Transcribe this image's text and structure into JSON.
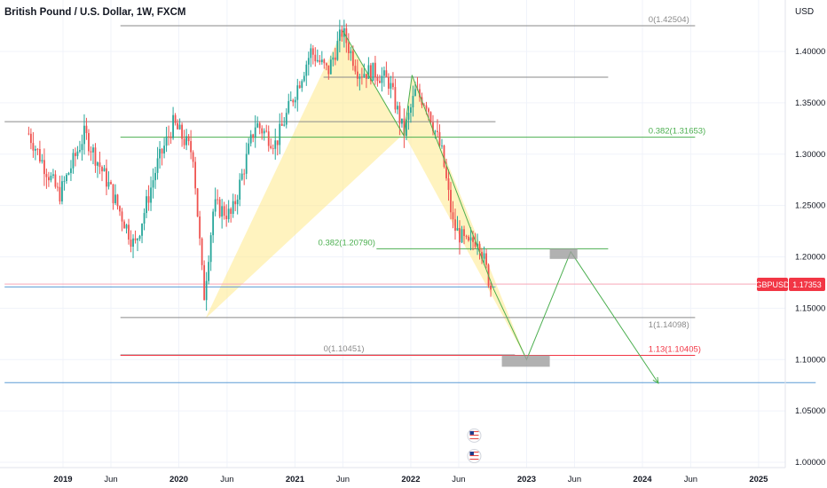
{
  "header": {
    "title": "British Pound / U.S. Dollar, 1W, FXCM",
    "currency": "USD"
  },
  "symbol_badge": {
    "label": "GBPUSD",
    "price": "1.17353"
  },
  "chart_data": {
    "type": "candlestick",
    "title": "British Pound / U.S. Dollar, 1W, FXCM",
    "y_unit": "USD",
    "ylim": [
      0.995,
      1.451
    ],
    "y_ticks": [
      {
        "value": 1.4,
        "label": "1.40000"
      },
      {
        "value": 1.35,
        "label": "1.35000"
      },
      {
        "value": 1.3,
        "label": "1.30000"
      },
      {
        "value": 1.25,
        "label": "1.25000"
      },
      {
        "value": 1.2,
        "label": "1.20000"
      },
      {
        "value": 1.15,
        "label": "1.15000"
      },
      {
        "value": 1.1,
        "label": "1.10000"
      },
      {
        "value": 1.05,
        "label": "1.05000"
      },
      {
        "value": 1.0,
        "label": "1.00000"
      }
    ],
    "x_ticks": [
      {
        "date": "2019-01-01",
        "label": "2019",
        "bold": true
      },
      {
        "date": "2019-06-01",
        "label": "Jun",
        "bold": false
      },
      {
        "date": "2020-01-01",
        "label": "2020",
        "bold": true
      },
      {
        "date": "2020-06-01",
        "label": "Jun",
        "bold": false
      },
      {
        "date": "2021-01-01",
        "label": "2021",
        "bold": true
      },
      {
        "date": "2021-06-01",
        "label": "Jun",
        "bold": false
      },
      {
        "date": "2022-01-01",
        "label": "2022",
        "bold": true
      },
      {
        "date": "2022-06-01",
        "label": "Jun",
        "bold": false
      },
      {
        "date": "2023-01-01",
        "label": "2023",
        "bold": true
      },
      {
        "date": "2023-06-01",
        "label": "Jun",
        "bold": false
      },
      {
        "date": "2024-01-01",
        "label": "2024",
        "bold": true
      },
      {
        "date": "2024-06-01",
        "label": "Jun",
        "bold": false
      },
      {
        "date": "2025-01-01",
        "label": "2025",
        "bold": true
      }
    ],
    "price_path": [
      [
        "2018-09-15",
        1.32
      ],
      [
        "2018-11-01",
        1.29
      ],
      [
        "2018-12-20",
        1.26
      ],
      [
        "2019-03-10",
        1.32
      ],
      [
        "2019-05-25",
        1.27
      ],
      [
        "2019-08-15",
        1.21
      ],
      [
        "2019-10-25",
        1.29
      ],
      [
        "2019-12-15",
        1.33
      ],
      [
        "2020-02-15",
        1.3
      ],
      [
        "2020-03-20",
        1.16
      ],
      [
        "2020-04-20",
        1.25
      ],
      [
        "2020-06-15",
        1.24
      ],
      [
        "2020-08-30",
        1.33
      ],
      [
        "2020-11-01",
        1.31
      ],
      [
        "2021-01-01",
        1.36
      ],
      [
        "2021-02-20",
        1.4
      ],
      [
        "2021-04-15",
        1.38
      ],
      [
        "2021-05-30",
        1.42
      ],
      [
        "2021-07-20",
        1.38
      ],
      [
        "2021-09-10",
        1.38
      ],
      [
        "2021-10-25",
        1.37
      ],
      [
        "2021-12-10",
        1.32
      ],
      [
        "2022-01-15",
        1.36
      ],
      [
        "2022-02-20",
        1.35
      ],
      [
        "2022-04-10",
        1.3
      ],
      [
        "2022-05-15",
        1.23
      ],
      [
        "2022-06-30",
        1.21
      ],
      [
        "2022-08-01",
        1.22
      ],
      [
        "2022-09-10",
        1.17
      ]
    ],
    "levels": [
      {
        "value": 1.42504,
        "label": "0(1.42504)",
        "color": "#8a8a8a",
        "from": "2019-07-01",
        "to": "2024-06-15",
        "label_at": "2024-01-20",
        "label_side": "above"
      },
      {
        "value": 1.375,
        "label": "",
        "color": "#8a8a8a",
        "from": "2021-04-01",
        "to": "2023-09-15"
      },
      {
        "value": 1.3316,
        "label": "",
        "color": "#8a8a8a",
        "from": "2018-07-01",
        "to": "2022-09-25"
      },
      {
        "value": 1.31653,
        "label": "0.382(1.31653)",
        "color": "#4caf50",
        "from": "2019-07-01",
        "to": "2024-06-15",
        "label_at": "2024-01-20",
        "label_side": "above"
      },
      {
        "value": 1.2079,
        "label": "0.382(1.20790)",
        "color": "#4caf50",
        "from": "2021-09-15",
        "to": "2023-09-15",
        "label_at": "2021-03-15",
        "label_side": "above"
      },
      {
        "value": 1.14098,
        "label": "1(1.14098)",
        "color": "#8a8a8a",
        "from": "2019-07-01",
        "to": "2024-06-15",
        "label_at": "2024-01-20",
        "label_side": "below"
      },
      {
        "value": 1.10451,
        "label": "0(1.10451)",
        "color": "#8a8a8a",
        "from": "2019-07-01",
        "to": "2022-11-25",
        "label_at": "2021-04-01",
        "label_side": "above"
      },
      {
        "value": 1.10405,
        "label": "1.13(1.10405)",
        "color": "#f23645",
        "from": "2019-07-01",
        "to": "2024-06-15",
        "label_at": "2024-01-20",
        "label_side": "above"
      }
    ],
    "horizontal_lines": [
      {
        "value": 1.1707,
        "color": "#5b9bd5",
        "from": "2018-07-01",
        "to": "2022-09-25"
      },
      {
        "value": 1.0775,
        "color": "#5b9bd5",
        "from": "2018-07-01",
        "to": "2025-06-30"
      },
      {
        "value": 1.17353,
        "color": "#f7a8b8",
        "from": "2018-07-01",
        "to": "2025-06-30"
      }
    ],
    "harmonic_pattern": {
      "color": "#ffe98a",
      "points": [
        [
          "2020-03-25",
          1.14
        ],
        [
          "2021-05-30",
          1.42
        ],
        [
          "2021-12-10",
          1.32
        ],
        [
          "2022-01-05",
          1.377
        ],
        [
          "2023-01-01",
          1.1
        ]
      ]
    },
    "projection_lines": [
      {
        "color": "#4caf50",
        "points": [
          [
            "2021-06-01",
            1.42
          ],
          [
            "2021-12-10",
            1.318
          ],
          [
            "2022-01-05",
            1.377
          ],
          [
            "2022-09-20",
            1.168
          ],
          [
            "2023-01-01",
            1.1
          ],
          [
            "2023-05-20",
            1.205
          ],
          [
            "2024-02-20",
            1.077
          ]
        ]
      }
    ],
    "zones": [
      {
        "from": "2022-10-15",
        "to": "2023-03-15",
        "low": 1.093,
        "high": 1.104,
        "color": "#9e9e9e"
      },
      {
        "from": "2023-03-15",
        "to": "2023-06-10",
        "low": 1.198,
        "high": 1.208,
        "color": "#9e9e9e"
      }
    ],
    "event_markers": [
      {
        "date": "2022-07-20",
        "value": 1.026,
        "icon": "us-flag-icon"
      },
      {
        "date": "2022-07-20",
        "value": 1.006,
        "icon": "us-flag-icon"
      }
    ],
    "last_price": 1.17353
  }
}
